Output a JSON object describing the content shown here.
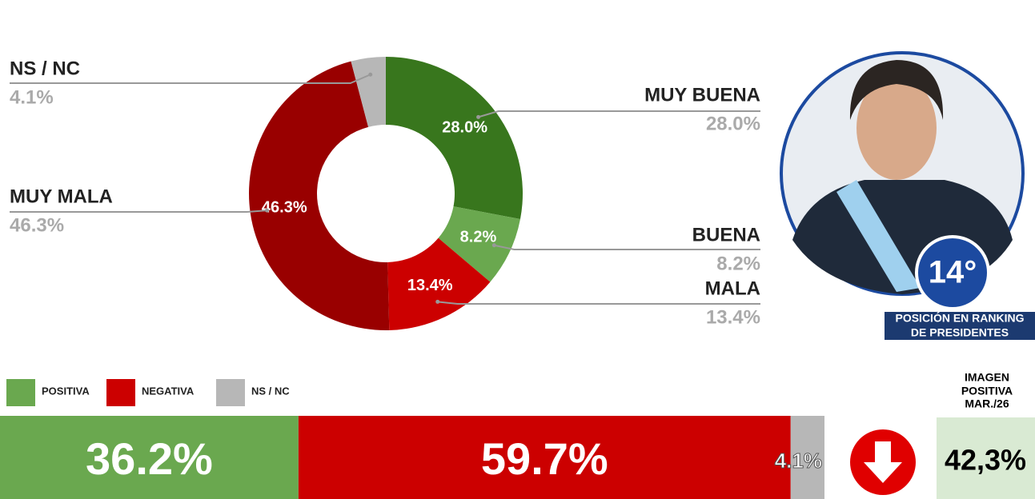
{
  "chart_data": [
    {
      "type": "pie",
      "categories": [
        "MUY BUENA",
        "BUENA",
        "MALA",
        "MUY MALA",
        "NS / NC"
      ],
      "values": [
        28.0,
        8.2,
        13.4,
        46.3,
        4.1
      ],
      "value_labels": [
        "28.0%",
        "8.2%",
        "13.4%",
        "46.3%",
        "4.1%"
      ],
      "colors": [
        "#38761d",
        "#6aa84f",
        "#cc0000",
        "#990000",
        "#b7b7b7"
      ]
    },
    {
      "type": "stacked-bar",
      "series": [
        {
          "name": "POSITIVA",
          "color": "#6aa84f",
          "values": [
            36.2
          ],
          "value_labels": [
            "36.2%"
          ]
        },
        {
          "name": "NEGATIVA",
          "color": "#cc0000",
          "values": [
            59.7
          ],
          "value_labels": [
            "59.7%"
          ]
        },
        {
          "name": "NS / NC",
          "color": "#b7b7b7",
          "values": [
            4.1
          ],
          "value_labels": [
            "4.1%"
          ]
        }
      ],
      "xlim": [
        0,
        100
      ]
    }
  ],
  "sidebar": {
    "rank": "14°",
    "rank_label_1": "POSICIÓN EN RANKING",
    "rank_label_2": "DE PRESIDENTES",
    "image_title_1": "IMAGEN",
    "image_title_2": "POSITIVA",
    "image_title_3": "MAR./26",
    "image_value": "42,3%"
  }
}
